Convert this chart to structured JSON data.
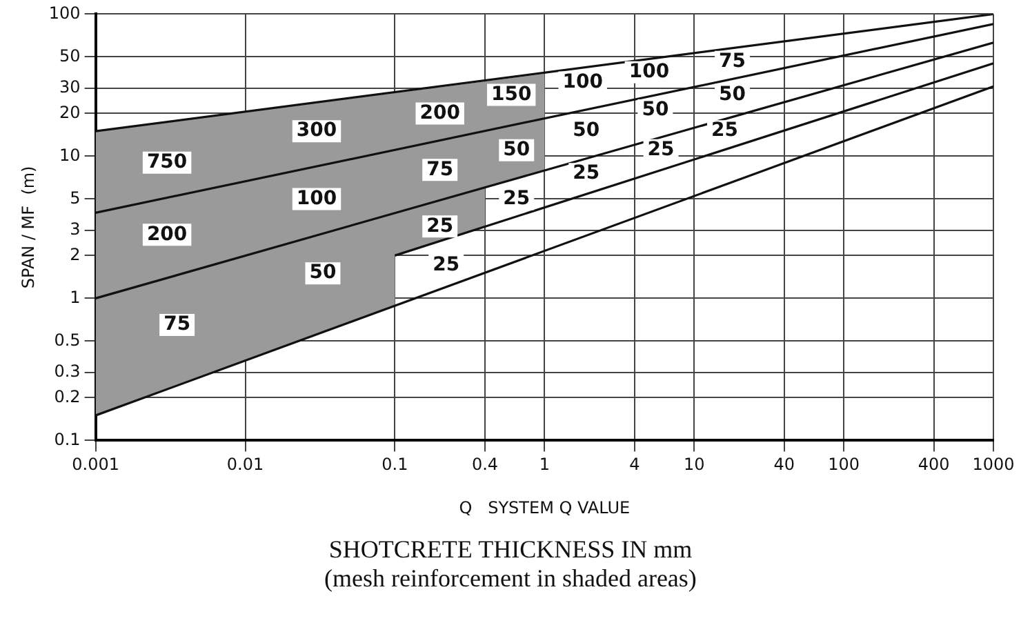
{
  "chart_data": {
    "type": "line",
    "title": "SHOTCRETE THICKNESS IN mm",
    "subtitle": "(mesh reinforcement in shaded areas)",
    "xlabel": "Q   SYSTEM Q VALUE",
    "ylabel": "SPAN / MF  (m)",
    "log": "xy",
    "grid": true,
    "legend": false,
    "marker": "none",
    "line_style": "solid",
    "xlim": [
      0.001,
      1000
    ],
    "ylim": [
      0.1,
      100
    ],
    "xticks": [
      0.001,
      0.01,
      0.1,
      0.4,
      1,
      4,
      10,
      40,
      100,
      400,
      1000
    ],
    "yticks": [
      0.1,
      0.2,
      0.3,
      0.5,
      1,
      2,
      3,
      5,
      10,
      20,
      30,
      50,
      100
    ],
    "series": [
      {
        "type": "area",
        "color": "#9a9a9a",
        "x": [
          0.001,
          1,
          1,
          0.4,
          0.4,
          0.1,
          0.1,
          0.001,
          0.001
        ],
        "values": [
          15,
          38,
          8,
          6,
          3.2,
          2,
          0.9,
          0.15,
          15
        ]
      },
      {
        "type": "line",
        "color": "#111111",
        "x": [
          0.001,
          1000
        ],
        "values": [
          15,
          100
        ]
      },
      {
        "type": "line",
        "color": "#111111",
        "x": [
          0.001,
          1000
        ],
        "values": [
          4,
          85
        ]
      },
      {
        "type": "line",
        "color": "#111111",
        "x": [
          0.001,
          1000
        ],
        "values": [
          1,
          63
        ]
      },
      {
        "type": "line",
        "color": "#111111",
        "x": [
          0.001,
          1000
        ],
        "values": [
          0.15,
          31
        ]
      },
      {
        "type": "line",
        "color": "#111111",
        "x": [
          0.1,
          1000
        ],
        "values": [
          2,
          45
        ]
      }
    ],
    "annotations": [
      {
        "text": "750",
        "x": 0.003,
        "y": 9
      },
      {
        "text": "300",
        "x": 0.03,
        "y": 15
      },
      {
        "text": "200",
        "x": 0.2,
        "y": 20
      },
      {
        "text": "150",
        "x": 0.6,
        "y": 27
      },
      {
        "text": "50",
        "x": 0.65,
        "y": 11
      },
      {
        "text": "75",
        "x": 0.2,
        "y": 8
      },
      {
        "text": "100",
        "x": 0.03,
        "y": 5
      },
      {
        "text": "25",
        "x": 0.65,
        "y": 5
      },
      {
        "text": "25",
        "x": 0.2,
        "y": 3.2
      },
      {
        "text": "200",
        "x": 0.003,
        "y": 2.8
      },
      {
        "text": "25",
        "x": 0.22,
        "y": 1.7
      },
      {
        "text": "50",
        "x": 0.033,
        "y": 1.5
      },
      {
        "text": "75",
        "x": 0.0035,
        "y": 0.65
      },
      {
        "text": "100",
        "x": 1.8,
        "y": 33
      },
      {
        "text": "100",
        "x": 5,
        "y": 39
      },
      {
        "text": "75",
        "x": 18,
        "y": 46
      },
      {
        "text": "50",
        "x": 18,
        "y": 27
      },
      {
        "text": "50",
        "x": 5.5,
        "y": 21
      },
      {
        "text": "50",
        "x": 1.9,
        "y": 15
      },
      {
        "text": "25",
        "x": 6,
        "y": 11
      },
      {
        "text": "25",
        "x": 16,
        "y": 15
      },
      {
        "text": "25",
        "x": 1.9,
        "y": 7.5
      }
    ]
  }
}
